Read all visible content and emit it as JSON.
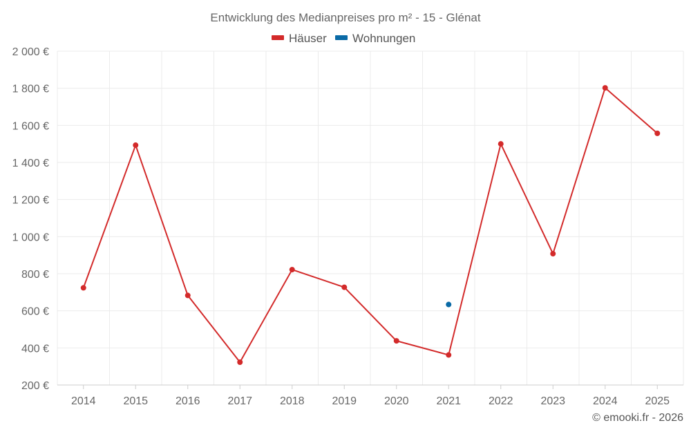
{
  "chart_data": {
    "type": "line",
    "title": "Entwicklung des Medianpreises pro m² - 15 - Glénat",
    "categories": [
      "2014",
      "2015",
      "2016",
      "2017",
      "2018",
      "2019",
      "2020",
      "2021",
      "2022",
      "2023",
      "2024",
      "2025"
    ],
    "ylim": [
      200,
      2000
    ],
    "yticks": [
      200,
      400,
      600,
      800,
      1000,
      1200,
      1400,
      1600,
      1800,
      2000
    ],
    "ytick_labels": [
      "200 €",
      "400 €",
      "600 €",
      "800 €",
      "1 000 €",
      "1 200 €",
      "1 400 €",
      "1 600 €",
      "1 800 €",
      "2 000 €"
    ],
    "grid": true,
    "legend_position": "top-center",
    "series": [
      {
        "name": "Häuser",
        "color": "#d32a2a",
        "values": [
          724,
          1493,
          683,
          323,
          822,
          727,
          438,
          362,
          1500,
          908,
          1802,
          1557
        ]
      },
      {
        "name": "Wohnungen",
        "color": "#0a6aa6",
        "values": [
          null,
          null,
          null,
          null,
          null,
          null,
          null,
          634,
          null,
          null,
          null,
          null
        ]
      }
    ]
  },
  "footer": {
    "credit": "© emooki.fr - 2026"
  }
}
